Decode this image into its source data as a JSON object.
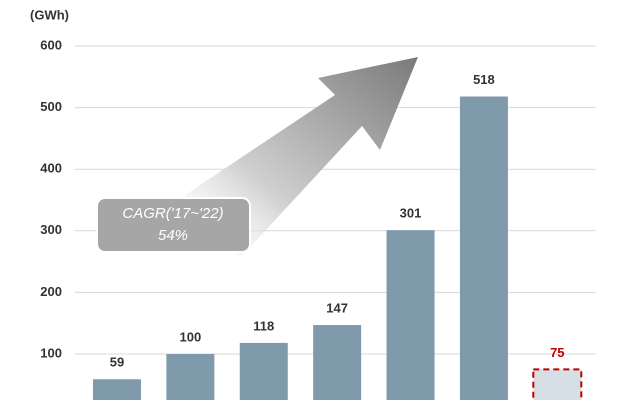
{
  "chart_data": {
    "type": "bar",
    "y_axis_label": "(GWh)",
    "values": [
      59,
      100,
      118,
      147,
      301,
      518,
      75
    ],
    "colors": [
      "#7f9aab",
      "#7f9aab",
      "#7f9aab",
      "#7f9aab",
      "#7f9aab",
      "#7f9aab",
      "#d6dfe6"
    ],
    "outline_colors": [
      null,
      null,
      null,
      null,
      null,
      null,
      "#c00000"
    ],
    "label_colors": [
      "#333333",
      "#333333",
      "#333333",
      "#333333",
      "#333333",
      "#333333",
      "#c00000"
    ],
    "ylim": [
      0,
      600
    ],
    "yticks": [
      100,
      200,
      300,
      400,
      500,
      600
    ],
    "grid": true,
    "annotation": {
      "title": "CAGR('17~'22)",
      "value": "54%"
    }
  }
}
